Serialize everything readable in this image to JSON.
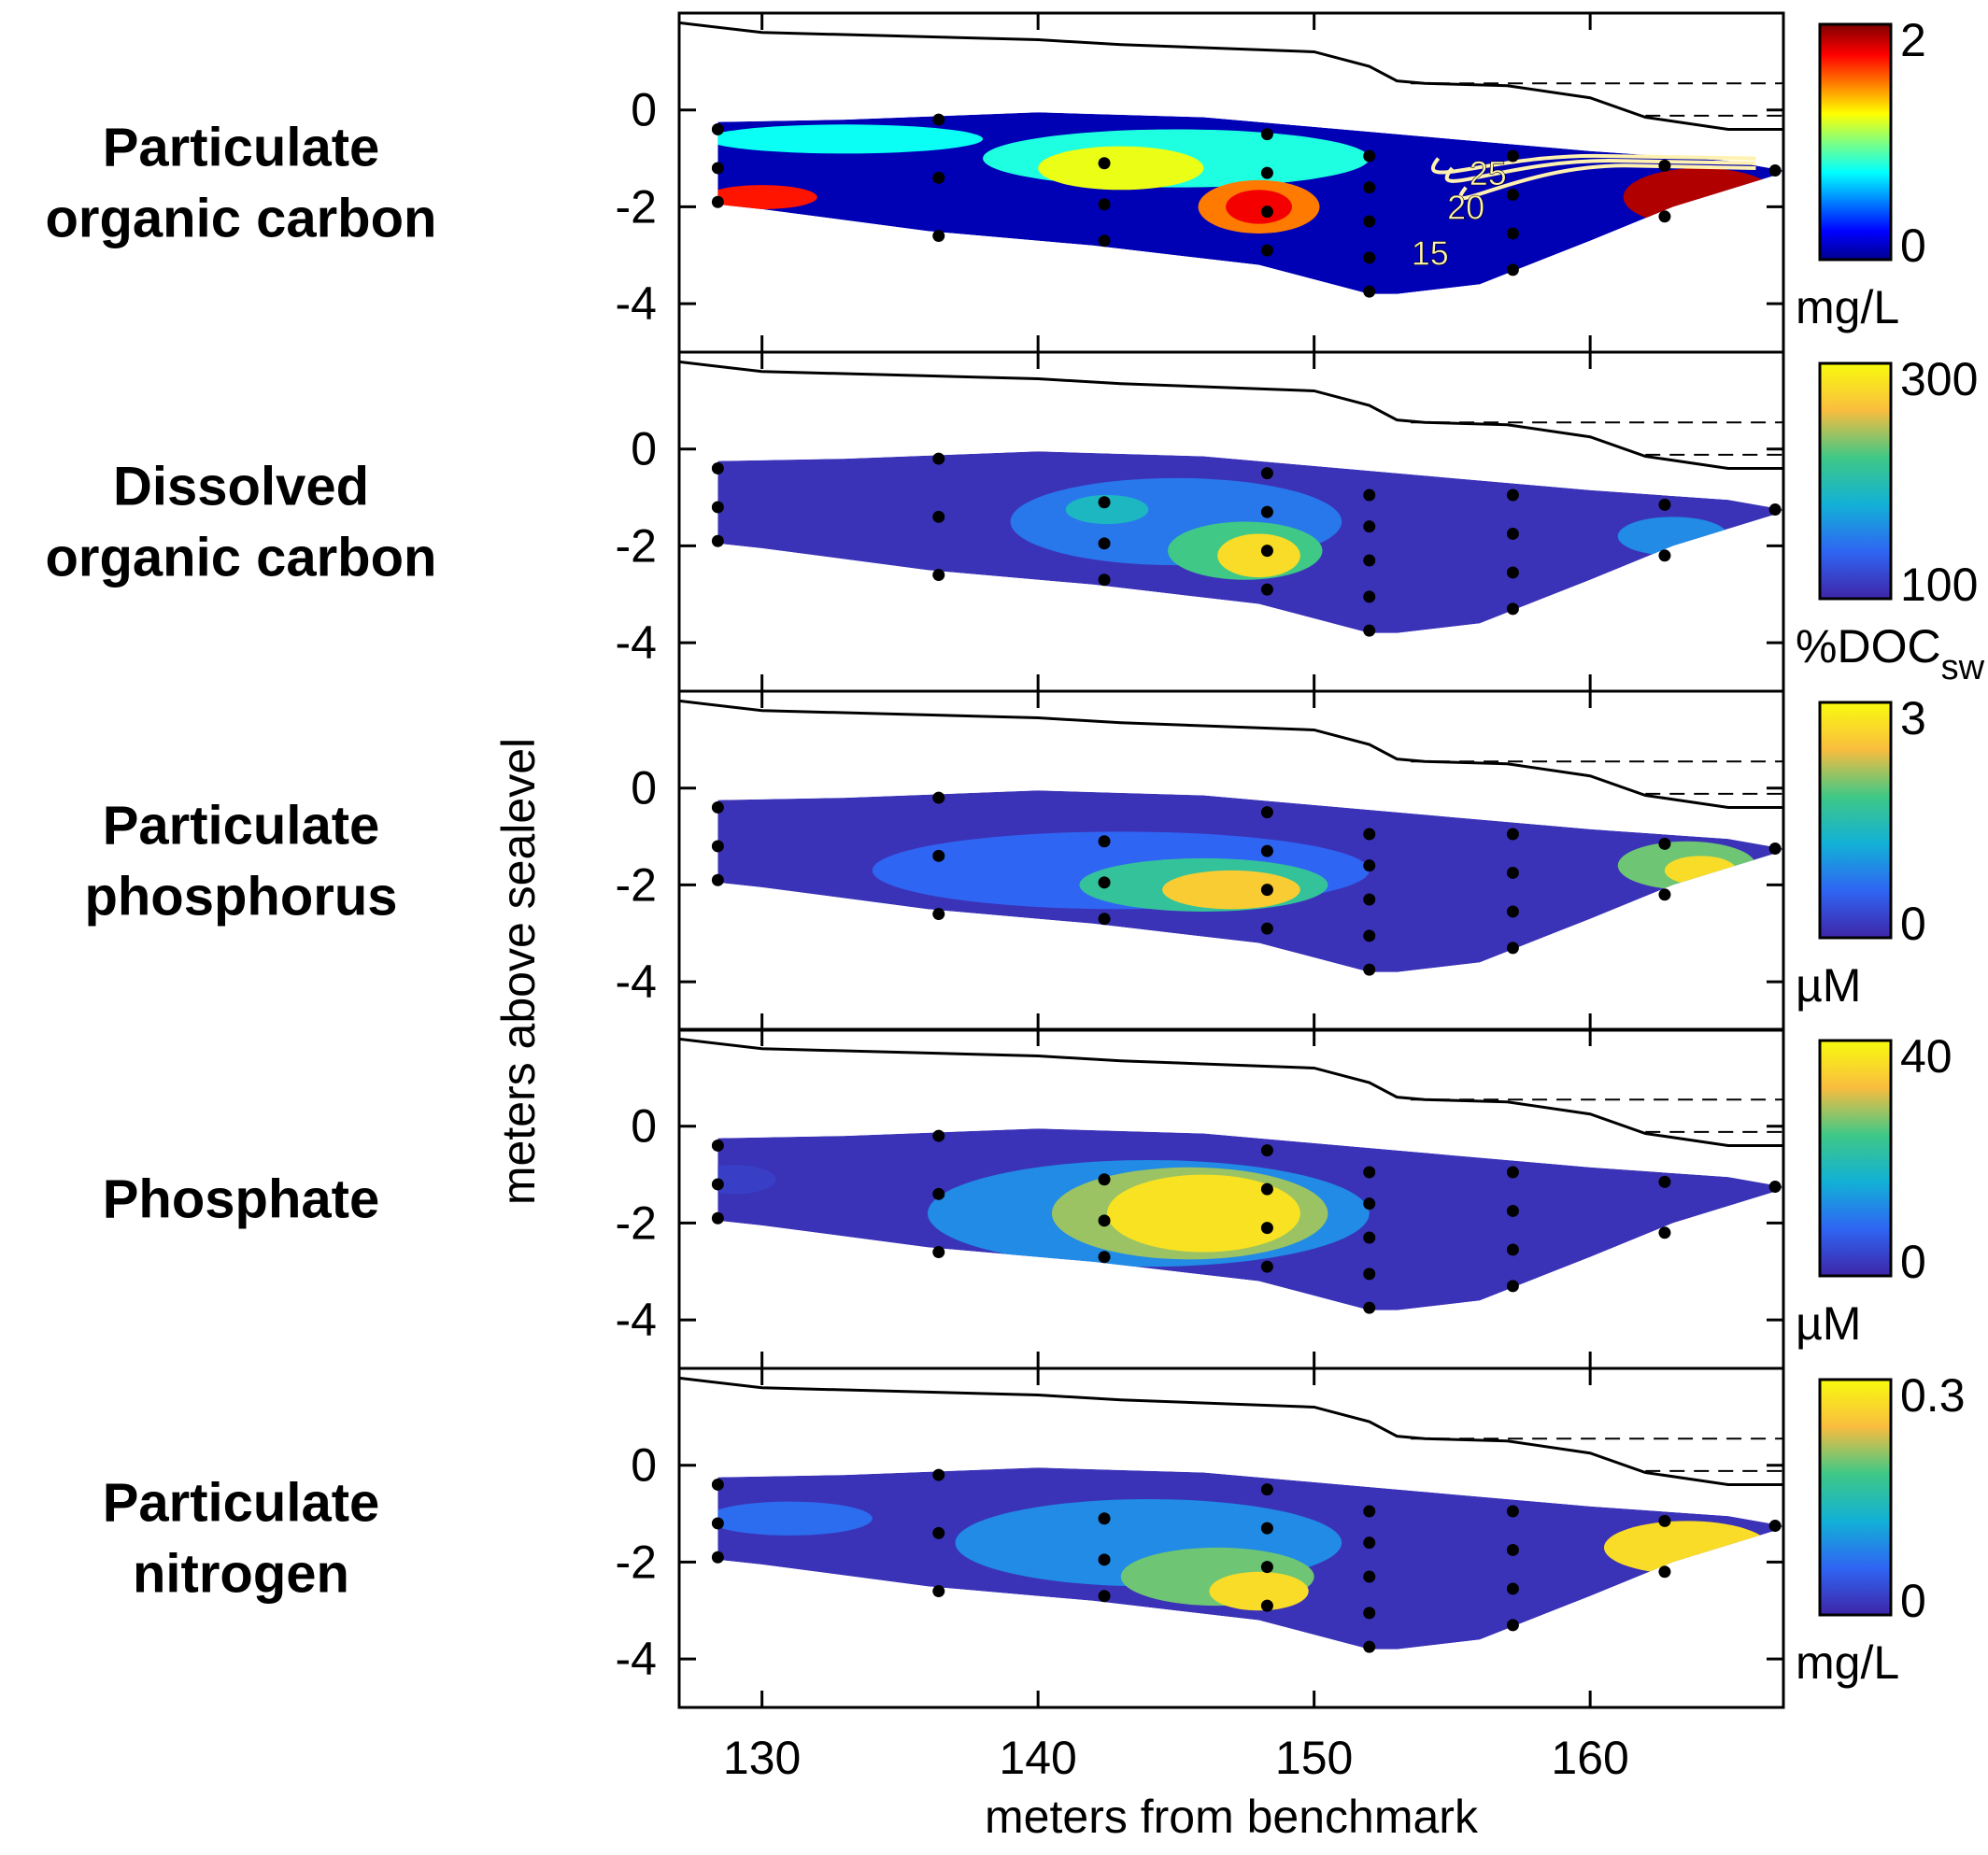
{
  "chart_data": {
    "type": "heatmap",
    "xlabel": "meters from benchmark",
    "ylabel": "meters above sealevel",
    "xlim": [
      127,
      167
    ],
    "ylim": [
      -5,
      2
    ],
    "xticks": [
      130,
      140,
      150,
      160
    ],
    "yticks": [
      0,
      -2,
      -4
    ],
    "grid": false,
    "surface_profile": [
      [
        127,
        1.8
      ],
      [
        130,
        1.6
      ],
      [
        140,
        1.45
      ],
      [
        143,
        1.35
      ],
      [
        150,
        1.2
      ],
      [
        152,
        0.9
      ],
      [
        153,
        0.6
      ],
      [
        154,
        0.55
      ],
      [
        157,
        0.5
      ],
      [
        160,
        0.25
      ],
      [
        162,
        -0.15
      ],
      [
        165,
        -0.4
      ],
      [
        167,
        -0.4
      ]
    ],
    "water_level_lines": [
      {
        "y": 0.55,
        "x_range": [
          153.5,
          167
        ]
      },
      {
        "y": -0.12,
        "x_range": [
          162,
          167
        ]
      }
    ],
    "sample_points": [
      [
        128.4,
        -0.4
      ],
      [
        128.4,
        -1.2
      ],
      [
        128.4,
        -1.9
      ],
      [
        136.4,
        -0.2
      ],
      [
        136.4,
        -1.4
      ],
      [
        136.4,
        -2.6
      ],
      [
        142.4,
        -1.1
      ],
      [
        142.4,
        -1.95
      ],
      [
        142.4,
        -2.7
      ],
      [
        148.3,
        -0.5
      ],
      [
        148.3,
        -1.3
      ],
      [
        148.3,
        -2.1
      ],
      [
        148.3,
        -2.9
      ],
      [
        152.0,
        -0.95
      ],
      [
        152.0,
        -1.6
      ],
      [
        152.0,
        -2.3
      ],
      [
        152.0,
        -3.05
      ],
      [
        152.0,
        -3.75
      ],
      [
        157.2,
        -0.95
      ],
      [
        157.2,
        -1.75
      ],
      [
        157.2,
        -2.55
      ],
      [
        157.2,
        -3.3
      ],
      [
        162.7,
        -1.15
      ],
      [
        162.7,
        -2.2
      ],
      [
        166.7,
        -1.25
      ]
    ],
    "panels": [
      {
        "title_lines": [
          "Particulate",
          "organic carbon"
        ],
        "colormap": "jet",
        "colorbar_ticks": [
          "2",
          "0"
        ],
        "colorbar_range": [
          0,
          2
        ],
        "unit": "mg/L",
        "unit_sub": "",
        "contour_labels": [
          "25",
          "20",
          "15"
        ]
      },
      {
        "title_lines": [
          "Dissolved",
          "organic carbon"
        ],
        "colormap": "parula",
        "colorbar_ticks": [
          "300",
          "100"
        ],
        "colorbar_range": [
          100,
          300
        ],
        "unit": "%DOC",
        "unit_sub": "sw",
        "contour_labels": []
      },
      {
        "title_lines": [
          "Particulate",
          "phosphorus"
        ],
        "colormap": "parula",
        "colorbar_ticks": [
          "3",
          "0"
        ],
        "colorbar_range": [
          0,
          3
        ],
        "unit": "µM",
        "unit_sub": "",
        "contour_labels": []
      },
      {
        "title_lines": [
          "Phosphate"
        ],
        "colormap": "parula",
        "colorbar_ticks": [
          "40",
          "0"
        ],
        "colorbar_range": [
          0,
          40
        ],
        "unit": "µM",
        "unit_sub": "",
        "contour_labels": []
      },
      {
        "title_lines": [
          "Particulate",
          "nitrogen"
        ],
        "colormap": "parula",
        "colorbar_ticks": [
          "0.3",
          "0"
        ],
        "colorbar_range": [
          0,
          0.3
        ],
        "unit": "mg/L",
        "unit_sub": "",
        "contour_labels": []
      }
    ]
  }
}
